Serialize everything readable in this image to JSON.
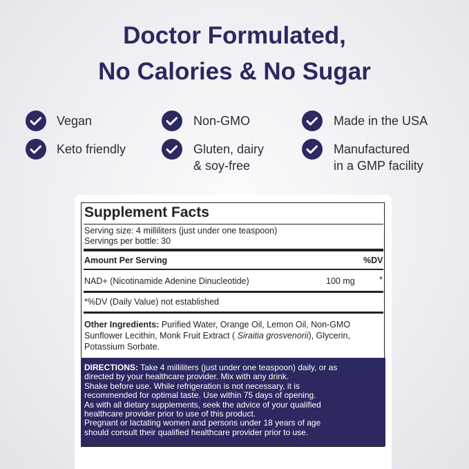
{
  "header": {
    "title_lines": [
      "Doctor Formulated,",
      "No Calories & No Sugar"
    ]
  },
  "features": [
    {
      "lines": [
        "Vegan"
      ]
    },
    {
      "lines": [
        "Non-GMO"
      ]
    },
    {
      "lines": [
        "Made in the USA"
      ]
    },
    {
      "lines": [
        "Keto friendly"
      ]
    },
    {
      "lines": [
        "Gluten, dairy",
        "& soy-free"
      ]
    },
    {
      "lines": [
        "Manufactured",
        "in a GMP facility"
      ]
    }
  ],
  "facts": {
    "title": "Supplement Facts",
    "serving_size": "Serving size: 4 milliliters (just under one teaspoon)",
    "servings": "Servings per bottle: 30",
    "amount_header": "Amount Per Serving",
    "dv_header": "%DV",
    "ingredient": "NAD+ (Nicotinamide Adenine Dinucleotide)",
    "amount": "100 mg",
    "dv_mark": "*",
    "dv_note": "*%DV (Daily Value) not established",
    "other_label": "Other Ingredients:",
    "other_line1": " Purified Water, Orange Oil, Lemon Oil, Non-GMO",
    "other_line2a": "Sunflower Lecithin, Monk Fruit Extract ( ",
    "other_line2b": "Siraitia grosvenorii",
    "other_line2c": "), Glycerin,",
    "other_line3": "Potassium Sorbate."
  },
  "directions": {
    "label": "DIRECTIONS:",
    "lines": [
      " Take 4 milliliters (just under one teaspoon) daily, or as",
      "directed by your healthcare provider. Mix with any drink.",
      "Shake before use. While refrigeration is not necessary, it is",
      "recommended for optimal taste. Use within 75 days of opening.",
      "As with all dietary supplements, seek the advice of your qualified",
      "healthcare provider prior to use of this product.",
      "Pregnant or lactating women and persons under 18 years of age",
      "should consult their qualified healthcare provider prior to use."
    ]
  }
}
